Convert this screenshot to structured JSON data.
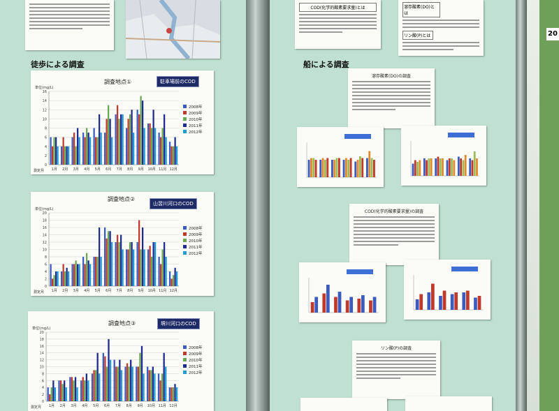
{
  "left_board": {
    "section_heading": "徒歩による調査",
    "charts": [
      {
        "title": "調査地点①",
        "label": "駐車場前のCOD",
        "yunit": "単位(mg/L)",
        "xunit": "測定月",
        "ylim": [
          0,
          16
        ],
        "yticks": [
          "0",
          "2",
          "4",
          "6",
          "8",
          "10",
          "12",
          "14",
          "16"
        ],
        "categories": [
          "1月",
          "2月",
          "3月",
          "4月",
          "5月",
          "6月",
          "7月",
          "8月",
          "9月",
          "10月",
          "11月",
          "12月"
        ],
        "series": [
          {
            "name": "2008年",
            "color": "#3b5bbf",
            "values": [
              6,
              4,
              6,
              7,
              8,
              7,
              11,
              8,
              12,
              9,
              7,
              5
            ]
          },
          {
            "name": "2009年",
            "color": "#c0392b",
            "values": [
              4,
              6,
              7,
              6,
              6,
              10,
              13,
              10,
              11,
              9,
              6,
              4
            ]
          },
          {
            "name": "2010年",
            "color": "#6aa84f",
            "values": [
              6,
              4,
              4,
              8,
              6,
              13,
              10,
              11,
              15,
              8,
              8,
              4
            ]
          },
          {
            "name": "2011年",
            "color": "#1e2b8f",
            "values": [
              6,
              4,
              8,
              7,
              11,
              10,
              11,
              12,
              14,
              12,
              11,
              6
            ]
          },
          {
            "name": "2012年",
            "color": "#1f9bd6",
            "values": [
              4,
              4,
              6,
              6,
              7,
              6,
              11,
              7,
              8,
              8,
              6,
              4
            ]
          }
        ]
      },
      {
        "title": "調査地点②",
        "label": "山習川河口のCOD",
        "yunit": "単位(mg/L)",
        "xunit": "測定月",
        "ylim": [
          0,
          20
        ],
        "yticks": [
          "0",
          "2",
          "4",
          "6",
          "8",
          "10",
          "12",
          "14",
          "16",
          "18",
          "20"
        ],
        "categories": [
          "1月",
          "2月",
          "3月",
          "4月",
          "5月",
          "6月",
          "7月",
          "8月",
          "9月",
          "10月",
          "11月",
          "12月"
        ],
        "series": [
          {
            "name": "2008年",
            "color": "#3b5bbf",
            "values": [
              6,
              4,
              6,
              8,
              8,
              16,
              12,
              10,
              12,
              10,
              8,
              4
            ]
          },
          {
            "name": "2009年",
            "color": "#c0392b",
            "values": [
              2,
              6,
              6,
              6,
              8,
              13,
              14,
              10,
              18,
              11,
              6,
              2
            ]
          },
          {
            "name": "2010年",
            "color": "#6aa84f",
            "values": [
              3,
              4,
              7,
              9,
              8,
              15,
              12,
              12,
              10,
              8,
              10,
              3
            ]
          },
          {
            "name": "2011年",
            "color": "#1e2b8f",
            "values": [
              4,
              5,
              6,
              7,
              16,
              15,
              14,
              12,
              16,
              12,
              12,
              5
            ]
          },
          {
            "name": "2012年",
            "color": "#1f9bd6",
            "values": [
              4,
              4,
              6,
              6,
              8,
              12,
              10,
              10,
              10,
              12,
              8,
              4
            ]
          }
        ]
      },
      {
        "title": "調査地点③",
        "label": "堺川河口のCOD",
        "yunit": "単位(mg/L)",
        "xunit": "測定月",
        "ylim": [
          0,
          20
        ],
        "yticks": [
          "0",
          "2",
          "4",
          "6",
          "8",
          "10",
          "12",
          "14",
          "16",
          "18",
          "20"
        ],
        "categories": [
          "1月",
          "2月",
          "3月",
          "4月",
          "5月",
          "6月",
          "7月",
          "8月",
          "9月",
          "10月",
          "11月",
          "12月"
        ],
        "series": [
          {
            "name": "2008年",
            "color": "#3b5bbf",
            "values": [
              4,
              6,
              7,
              6,
              8,
              14,
              12,
              10,
              10,
              10,
              8,
              4
            ]
          },
          {
            "name": "2009年",
            "color": "#c0392b",
            "values": [
              2,
              6,
              7,
              7,
              9,
              13,
              10,
              11,
              10,
              9,
              6,
              4
            ]
          },
          {
            "name": "2010年",
            "color": "#6aa84f",
            "values": [
              4,
              5,
              6,
              6,
              9,
              10,
              10,
              10,
              14,
              9,
              8,
              4
            ]
          },
          {
            "name": "2011年",
            "color": "#1e2b8f",
            "values": [
              6,
              6,
              7,
              8,
              14,
              18,
              12,
              12,
              16,
              10,
              14,
              5
            ]
          },
          {
            "name": "2012年",
            "color": "#1f9bd6",
            "values": [
              4,
              4,
              4,
              6,
              8,
              12,
              9,
              10,
              8,
              8,
              10,
              4
            ]
          }
        ]
      }
    ]
  },
  "right_board": {
    "section_heading": "船による調査",
    "cod_note_title": "COD(化学的酸素要求量)とは",
    "do_note_title": "溶存酸素(DO)とは",
    "p_note_title": "リン酸(P)とは",
    "do_survey_title": "溶存酸素(DO)の調査",
    "cod_survey_title": "COD(化学的酸素要求量)の調査",
    "p_survey_title": "リン酸(P)の調査",
    "edge_number": "20"
  }
}
